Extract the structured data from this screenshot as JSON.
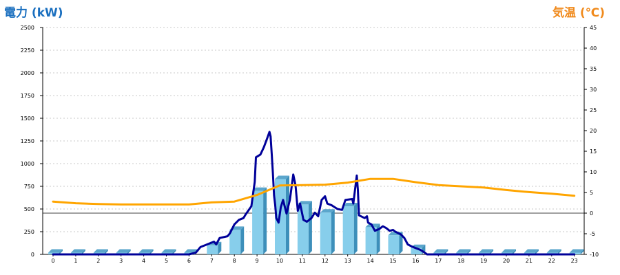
{
  "chart_data": {
    "type": "bar",
    "left_axis_title": "電力 (kW)",
    "right_axis_title": "気温 (℃)",
    "x": [
      0,
      1,
      2,
      3,
      4,
      5,
      6,
      7,
      8,
      9,
      10,
      11,
      12,
      13,
      14,
      15,
      16,
      17,
      18,
      19,
      20,
      21,
      22,
      23
    ],
    "x_tick_labels": [
      "0",
      "1",
      "2",
      "3",
      "4",
      "5",
      "6",
      "7",
      "8",
      "9",
      "10",
      "11",
      "12",
      "13",
      "14",
      "15",
      "16",
      "17",
      "18",
      "19",
      "20",
      "21",
      "22",
      "23"
    ],
    "y_left_ticks": [
      "0",
      "250",
      "500",
      "750",
      "1000",
      "1250",
      "1500",
      "1750",
      "2000",
      "2250",
      "2500"
    ],
    "y_right_ticks": [
      "-10",
      "-5",
      "0",
      "5",
      "10",
      "15",
      "20",
      "25",
      "30",
      "35",
      "40",
      "45"
    ],
    "y_left_lim": [
      0,
      2500
    ],
    "y_right_lim": [
      -10,
      45
    ],
    "grid": true,
    "colors": {
      "bars": "#87ceeb",
      "power_line": "#000099",
      "temperature_line": "#ffa500",
      "zero_line": "#000000"
    },
    "series": [
      {
        "kind": "bar",
        "axis": "left",
        "values": [
          0,
          0,
          0,
          0,
          0,
          0,
          0,
          100,
          270,
          700,
          830,
          550,
          460,
          530,
          300,
          210,
          70,
          0,
          0,
          0,
          0,
          0,
          0,
          0
        ]
      },
      {
        "kind": "line",
        "axis": "left",
        "points": [
          [
            0,
            0
          ],
          [
            1,
            0
          ],
          [
            2,
            0
          ],
          [
            3,
            0
          ],
          [
            4,
            0
          ],
          [
            5,
            0
          ],
          [
            6,
            0
          ],
          [
            6.3,
            20
          ],
          [
            6.5,
            80
          ],
          [
            6.8,
            110
          ],
          [
            7.1,
            140
          ],
          [
            7.2,
            110
          ],
          [
            7.35,
            180
          ],
          [
            7.7,
            200
          ],
          [
            7.8,
            230
          ],
          [
            8.0,
            330
          ],
          [
            8.2,
            380
          ],
          [
            8.4,
            400
          ],
          [
            8.5,
            440
          ],
          [
            8.75,
            530
          ],
          [
            8.9,
            800
          ],
          [
            8.95,
            1070
          ],
          [
            9.15,
            1100
          ],
          [
            9.3,
            1180
          ],
          [
            9.45,
            1280
          ],
          [
            9.55,
            1350
          ],
          [
            9.6,
            1300
          ],
          [
            9.65,
            1100
          ],
          [
            9.7,
            900
          ],
          [
            9.75,
            650
          ],
          [
            9.8,
            550
          ],
          [
            9.85,
            400
          ],
          [
            9.95,
            350
          ],
          [
            10.05,
            520
          ],
          [
            10.15,
            600
          ],
          [
            10.3,
            450
          ],
          [
            10.45,
            600
          ],
          [
            10.6,
            880
          ],
          [
            10.7,
            760
          ],
          [
            10.8,
            480
          ],
          [
            10.9,
            560
          ],
          [
            11.05,
            380
          ],
          [
            11.2,
            360
          ],
          [
            11.4,
            400
          ],
          [
            11.55,
            460
          ],
          [
            11.7,
            420
          ],
          [
            11.85,
            600
          ],
          [
            12.0,
            640
          ],
          [
            12.1,
            560
          ],
          [
            12.3,
            540
          ],
          [
            12.55,
            500
          ],
          [
            12.75,
            490
          ],
          [
            12.9,
            600
          ],
          [
            13.2,
            610
          ],
          [
            13.25,
            560
          ],
          [
            13.4,
            870
          ],
          [
            13.45,
            710
          ],
          [
            13.5,
            430
          ],
          [
            13.75,
            400
          ],
          [
            13.85,
            420
          ],
          [
            13.9,
            350
          ],
          [
            14.05,
            330
          ],
          [
            14.2,
            260
          ],
          [
            14.4,
            280
          ],
          [
            14.55,
            310
          ],
          [
            14.7,
            290
          ],
          [
            14.85,
            260
          ],
          [
            15.0,
            270
          ],
          [
            15.1,
            250
          ],
          [
            15.35,
            220
          ],
          [
            15.5,
            180
          ],
          [
            15.65,
            110
          ],
          [
            15.8,
            90
          ],
          [
            16.0,
            70
          ],
          [
            16.2,
            50
          ],
          [
            16.4,
            20
          ],
          [
            16.5,
            0
          ],
          [
            17,
            0
          ],
          [
            18,
            0
          ],
          [
            19,
            0
          ],
          [
            20,
            0
          ],
          [
            21,
            0
          ],
          [
            22,
            0
          ],
          [
            23,
            0
          ]
        ]
      },
      {
        "kind": "line",
        "axis": "right",
        "points": [
          [
            0,
            2.8
          ],
          [
            1,
            2.4
          ],
          [
            2,
            2.2
          ],
          [
            3,
            2.1
          ],
          [
            4,
            2.1
          ],
          [
            5,
            2.1
          ],
          [
            6,
            2.1
          ],
          [
            7,
            2.6
          ],
          [
            8,
            2.8
          ],
          [
            9,
            4.4
          ],
          [
            10,
            6.7
          ],
          [
            11,
            6.8
          ],
          [
            12,
            6.9
          ],
          [
            13,
            7.4
          ],
          [
            14,
            8.3
          ],
          [
            15,
            8.3
          ],
          [
            16,
            7.5
          ],
          [
            17,
            6.8
          ],
          [
            18,
            6.5
          ],
          [
            19,
            6.2
          ],
          [
            20,
            5.6
          ],
          [
            21,
            5.1
          ],
          [
            22,
            4.7
          ],
          [
            23,
            4.2
          ]
        ]
      }
    ]
  }
}
